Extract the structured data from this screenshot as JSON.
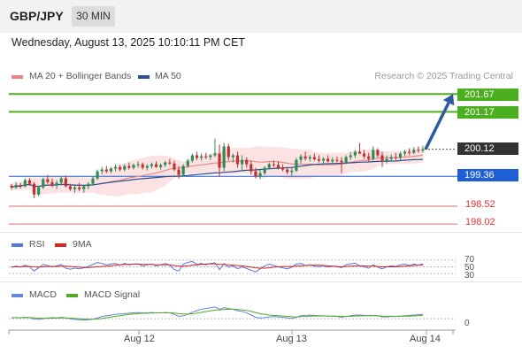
{
  "header": {
    "symbol": "GBP/JPY",
    "timeframe": "30 MIN"
  },
  "datetime": "Wednesday, August 13, 2025 10:10:11 PM CET",
  "copyright": "Research © 2025 Trading Central",
  "colors": {
    "candle_up": "#2e8b57",
    "candle_down": "#c23030",
    "ma20": "#e88a8a",
    "ma50": "#2d4f8e",
    "band_fill": "#fbdada",
    "resistance": "#4caf1f",
    "pivot": "#1f5fd6",
    "support": "#e86a6a",
    "arrow": "#2d5a9e",
    "rsi": "#5577dd",
    "rsi_ma": "#dd2222",
    "macd": "#6688dd",
    "macd_signal": "#55aa22"
  },
  "chart_data": [
    {
      "type": "candlestick",
      "legend": [
        {
          "name": "MA 20 + Bollinger Bands",
          "color": "#f08080"
        },
        {
          "name": "MA 50",
          "color": "#2d4f8e"
        }
      ],
      "x_labels": [
        "Aug 12",
        "Aug 13",
        "Aug 14"
      ],
      "price_range": [
        197.9,
        201.95
      ],
      "current_price": "200.12",
      "levels": [
        {
          "label": "201.67",
          "value": 201.67,
          "kind": "resistance"
        },
        {
          "label": "201.17",
          "value": 201.17,
          "kind": "resistance"
        },
        {
          "label": "199.36",
          "value": 199.36,
          "kind": "pivot"
        },
        {
          "label": "198.52",
          "value": 198.52,
          "kind": "support"
        },
        {
          "label": "198.02",
          "value": 198.02,
          "kind": "support"
        }
      ],
      "ohlc": [
        [
          199.1,
          199.15,
          198.98,
          199.05
        ],
        [
          199.05,
          199.2,
          199.0,
          199.12
        ],
        [
          199.12,
          199.18,
          199.02,
          199.08
        ],
        [
          199.08,
          199.3,
          199.05,
          199.25
        ],
        [
          199.25,
          199.32,
          199.1,
          199.15
        ],
        [
          199.15,
          199.2,
          198.75,
          198.85
        ],
        [
          198.85,
          199.1,
          198.8,
          199.05
        ],
        [
          199.05,
          199.32,
          199.0,
          199.28
        ],
        [
          199.28,
          199.4,
          199.15,
          199.2
        ],
        [
          199.2,
          199.3,
          199.05,
          199.1
        ],
        [
          199.1,
          199.25,
          199.0,
          199.18
        ],
        [
          199.18,
          199.35,
          199.1,
          199.3
        ],
        [
          199.3,
          199.38,
          199.05,
          199.08
        ],
        [
          199.08,
          199.15,
          198.95,
          199.0
        ],
        [
          199.0,
          199.12,
          198.9,
          199.05
        ],
        [
          199.05,
          199.18,
          198.95,
          199.0
        ],
        [
          199.0,
          199.12,
          198.9,
          199.08
        ],
        [
          199.08,
          199.2,
          199.0,
          199.15
        ],
        [
          199.15,
          199.35,
          199.1,
          199.3
        ],
        [
          199.3,
          199.55,
          199.25,
          199.5
        ],
        [
          199.5,
          199.62,
          199.42,
          199.55
        ],
        [
          199.55,
          199.65,
          199.45,
          199.5
        ],
        [
          199.5,
          199.62,
          199.45,
          199.58
        ],
        [
          199.58,
          199.7,
          199.5,
          199.62
        ],
        [
          199.62,
          199.68,
          199.5,
          199.55
        ],
        [
          199.55,
          199.7,
          199.5,
          199.65
        ],
        [
          199.65,
          199.75,
          199.55,
          199.6
        ],
        [
          199.6,
          199.72,
          199.55,
          199.68
        ],
        [
          199.68,
          199.78,
          199.6,
          199.7
        ],
        [
          199.7,
          199.75,
          199.55,
          199.6
        ],
        [
          199.6,
          199.7,
          199.52,
          199.65
        ],
        [
          199.65,
          199.75,
          199.58,
          199.7
        ],
        [
          199.7,
          199.78,
          199.6,
          199.62
        ],
        [
          199.62,
          199.72,
          199.55,
          199.68
        ],
        [
          199.68,
          199.8,
          199.62,
          199.75
        ],
        [
          199.75,
          199.85,
          199.68,
          199.72
        ],
        [
          199.72,
          199.8,
          199.5,
          199.55
        ],
        [
          199.55,
          199.65,
          199.3,
          199.4
        ],
        [
          199.4,
          199.7,
          199.35,
          199.65
        ],
        [
          199.65,
          199.85,
          199.6,
          199.8
        ],
        [
          199.8,
          200.0,
          199.75,
          199.95
        ],
        [
          199.95,
          200.05,
          199.82,
          199.88
        ],
        [
          199.88,
          200.0,
          199.8,
          199.92
        ],
        [
          199.92,
          200.02,
          199.85,
          199.9
        ],
        [
          199.9,
          199.98,
          199.82,
          199.95
        ],
        [
          199.95,
          200.42,
          199.9,
          200.0
        ],
        [
          200.0,
          200.25,
          199.35,
          199.6
        ],
        [
          199.6,
          200.3,
          199.5,
          200.2
        ],
        [
          200.2,
          200.28,
          199.8,
          199.9
        ],
        [
          199.9,
          200.0,
          199.75,
          199.95
        ],
        [
          199.95,
          200.05,
          199.6,
          199.7
        ],
        [
          199.7,
          199.95,
          199.5,
          199.82
        ],
        [
          199.82,
          199.9,
          199.6,
          199.7
        ],
        [
          199.7,
          199.8,
          199.4,
          199.5
        ],
        [
          199.5,
          199.6,
          199.3,
          199.35
        ],
        [
          199.35,
          199.55,
          199.28,
          199.45
        ],
        [
          199.45,
          199.65,
          199.4,
          199.6
        ],
        [
          199.6,
          199.75,
          199.55,
          199.7
        ],
        [
          199.7,
          199.8,
          199.62,
          199.68
        ],
        [
          199.68,
          199.78,
          199.55,
          199.6
        ],
        [
          199.6,
          199.7,
          199.5,
          199.55
        ],
        [
          199.55,
          199.62,
          199.42,
          199.48
        ],
        [
          199.48,
          199.6,
          199.35,
          199.52
        ],
        [
          199.52,
          199.88,
          199.48,
          199.82
        ],
        [
          199.82,
          199.98,
          199.72,
          199.92
        ],
        [
          199.92,
          200.05,
          199.8,
          199.86
        ],
        [
          199.86,
          199.96,
          199.78,
          199.9
        ],
        [
          199.9,
          200.0,
          199.8,
          199.84
        ],
        [
          199.84,
          199.95,
          199.75,
          199.8
        ],
        [
          199.8,
          199.9,
          199.7,
          199.85
        ],
        [
          199.85,
          199.95,
          199.75,
          199.78
        ],
        [
          199.78,
          199.9,
          199.7,
          199.82
        ],
        [
          199.82,
          199.92,
          199.75,
          199.8
        ],
        [
          199.8,
          199.9,
          199.45,
          199.75
        ],
        [
          199.75,
          199.95,
          199.7,
          199.9
        ],
        [
          199.9,
          200.05,
          199.82,
          199.95
        ],
        [
          199.95,
          200.1,
          199.88,
          200.05
        ],
        [
          200.05,
          200.3,
          199.98,
          200.0
        ],
        [
          200.0,
          200.1,
          199.85,
          199.92
        ],
        [
          199.92,
          200.02,
          199.78,
          199.85
        ],
        [
          199.85,
          200.2,
          199.8,
          200.1
        ],
        [
          200.1,
          200.15,
          199.88,
          199.95
        ],
        [
          199.95,
          200.05,
          199.62,
          199.8
        ],
        [
          199.8,
          199.95,
          199.72,
          199.85
        ],
        [
          199.85,
          199.98,
          199.78,
          199.9
        ],
        [
          199.9,
          200.02,
          199.82,
          199.88
        ],
        [
          199.88,
          200.05,
          199.8,
          200.0
        ],
        [
          200.0,
          200.1,
          199.92,
          200.05
        ],
        [
          200.05,
          200.15,
          199.95,
          200.02
        ],
        [
          200.02,
          200.18,
          199.98,
          200.1
        ],
        [
          200.1,
          200.2,
          200.02,
          200.08
        ],
        [
          200.08,
          200.22,
          200.02,
          200.12
        ]
      ],
      "arrow": {
        "from": 200.12,
        "to": 201.67
      }
    },
    {
      "type": "line",
      "panel": "RSI",
      "legend": [
        {
          "name": "RSI",
          "color": "#5577dd"
        },
        {
          "name": "9MA",
          "color": "#dd2222"
        }
      ],
      "y_labels": [
        "70",
        "50",
        "30"
      ],
      "y_range": [
        20,
        80
      ],
      "series": [
        {
          "name": "RSI",
          "values": [
            48,
            52,
            49,
            55,
            50,
            38,
            47,
            57,
            54,
            50,
            53,
            57,
            46,
            43,
            46,
            44,
            47,
            51,
            57,
            63,
            60,
            56,
            59,
            60,
            55,
            60,
            56,
            58,
            59,
            52,
            56,
            58,
            53,
            56,
            60,
            55,
            42,
            38,
            58,
            63,
            66,
            57,
            60,
            56,
            60,
            62,
            42,
            60,
            49,
            53,
            44,
            50,
            45,
            40,
            35,
            44,
            53,
            58,
            54,
            50,
            47,
            44,
            49,
            58,
            60,
            54,
            56,
            52,
            50,
            53,
            49,
            52,
            50,
            48,
            56,
            59,
            61,
            53,
            50,
            46,
            56,
            49,
            44,
            50,
            53,
            51,
            56,
            58,
            54,
            58,
            55,
            59
          ]
        },
        {
          "name": "9MA",
          "values": [
            50,
            50,
            50,
            51,
            51,
            50,
            49,
            50,
            51,
            51,
            51,
            52,
            52,
            51,
            50,
            49,
            48,
            48,
            49,
            50,
            51,
            52,
            53,
            55,
            56,
            57,
            57,
            58,
            58,
            57,
            57,
            57,
            56,
            56,
            56,
            56,
            54,
            52,
            52,
            53,
            55,
            56,
            57,
            58,
            59,
            59,
            57,
            57,
            56,
            55,
            54,
            53,
            51,
            49,
            47,
            46,
            46,
            47,
            49,
            50,
            51,
            51,
            51,
            52,
            53,
            54,
            55,
            55,
            55,
            54,
            53,
            52,
            51,
            50,
            51,
            52,
            53,
            53,
            53,
            52,
            52,
            51,
            50,
            50,
            50,
            50,
            51,
            52,
            53,
            54,
            55,
            56
          ]
        }
      ]
    },
    {
      "type": "line",
      "panel": "MACD",
      "legend": [
        {
          "name": "MACD",
          "color": "#6688dd"
        },
        {
          "name": "MACD Signal",
          "color": "#55aa22"
        }
      ],
      "y_labels": [
        "0"
      ],
      "y_range": [
        -0.12,
        0.22
      ],
      "series": [
        {
          "name": "MACD",
          "values": [
            0.01,
            0.015,
            0.01,
            0.02,
            0.015,
            -0.005,
            -0.01,
            0.0,
            0.01,
            0.015,
            0.01,
            0.02,
            0.01,
            0.0,
            -0.01,
            -0.015,
            -0.02,
            -0.015,
            -0.005,
            0.01,
            0.03,
            0.04,
            0.05,
            0.06,
            0.065,
            0.07,
            0.075,
            0.08,
            0.085,
            0.08,
            0.08,
            0.085,
            0.08,
            0.08,
            0.085,
            0.08,
            0.06,
            0.03,
            0.04,
            0.06,
            0.09,
            0.11,
            0.13,
            0.14,
            0.15,
            0.16,
            0.13,
            0.15,
            0.14,
            0.13,
            0.11,
            0.1,
            0.08,
            0.05,
            0.02,
            0.01,
            0.015,
            0.025,
            0.03,
            0.025,
            0.02,
            0.01,
            0.005,
            0.02,
            0.04,
            0.045,
            0.05,
            0.045,
            0.04,
            0.04,
            0.035,
            0.035,
            0.03,
            0.02,
            0.03,
            0.04,
            0.05,
            0.05,
            0.045,
            0.04,
            0.045,
            0.04,
            0.025,
            0.025,
            0.03,
            0.03,
            0.035,
            0.04,
            0.045,
            0.05,
            0.055,
            0.06
          ]
        },
        {
          "name": "MACD Signal",
          "values": [
            0.015,
            0.015,
            0.014,
            0.015,
            0.015,
            0.012,
            0.008,
            0.006,
            0.006,
            0.007,
            0.008,
            0.01,
            0.01,
            0.008,
            0.005,
            0.0,
            -0.005,
            -0.008,
            -0.008,
            -0.004,
            0.003,
            0.012,
            0.022,
            0.032,
            0.042,
            0.05,
            0.058,
            0.064,
            0.07,
            0.074,
            0.076,
            0.078,
            0.079,
            0.08,
            0.08,
            0.08,
            0.077,
            0.07,
            0.064,
            0.063,
            0.068,
            0.076,
            0.087,
            0.098,
            0.108,
            0.118,
            0.122,
            0.127,
            0.13,
            0.13,
            0.127,
            0.122,
            0.114,
            0.1,
            0.085,
            0.07,
            0.058,
            0.05,
            0.045,
            0.041,
            0.037,
            0.032,
            0.027,
            0.025,
            0.028,
            0.031,
            0.035,
            0.037,
            0.038,
            0.038,
            0.037,
            0.036,
            0.035,
            0.033,
            0.032,
            0.033,
            0.036,
            0.039,
            0.04,
            0.04,
            0.04,
            0.04,
            0.037,
            0.035,
            0.034,
            0.033,
            0.033,
            0.034,
            0.036,
            0.039,
            0.042,
            0.046
          ]
        }
      ]
    }
  ]
}
